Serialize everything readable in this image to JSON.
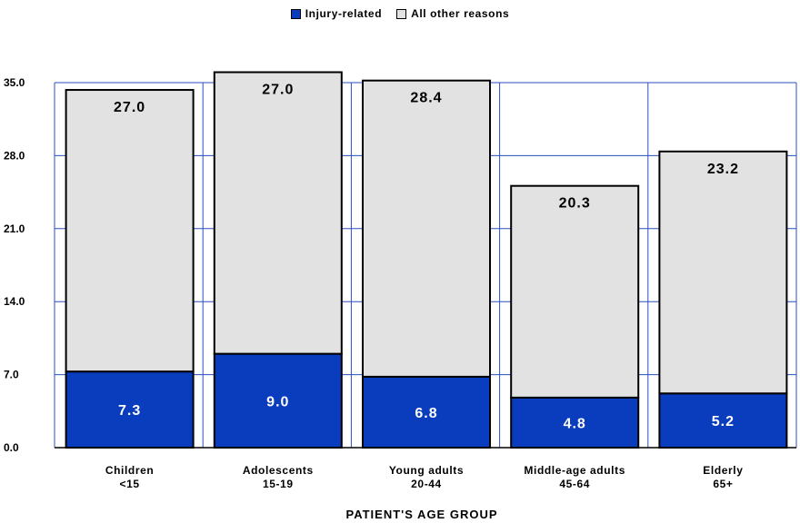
{
  "chart_data": {
    "type": "bar",
    "stacked": true,
    "categories": [
      {
        "line1": "Children",
        "line2": "<15"
      },
      {
        "line1": "Adolescents",
        "line2": "15-19"
      },
      {
        "line1": "Young adults",
        "line2": "20-44"
      },
      {
        "line1": "Middle-age adults",
        "line2": "45-64"
      },
      {
        "line1": "Elderly",
        "line2": "65+"
      }
    ],
    "series": [
      {
        "name": "Injury-related",
        "color": "#0a3cbe",
        "label_color": "#ffffff",
        "values": [
          7.3,
          9.0,
          6.8,
          4.8,
          5.2
        ],
        "labels": [
          "7.3",
          "9.0",
          "6.8",
          "4.8",
          "5.2"
        ]
      },
      {
        "name": "All other reasons",
        "color": "#e2e2e2",
        "label_color": "#000000",
        "values": [
          27.0,
          27.0,
          28.4,
          20.3,
          23.2
        ],
        "labels": [
          "27.0",
          "27.0",
          "28.4",
          "20.3",
          "23.2"
        ]
      }
    ],
    "xlabel": "PATIENT'S AGE GROUP",
    "ylabel": "",
    "ylim": [
      0,
      35
    ],
    "yticks": [
      "0.0",
      "7.0",
      "14.0",
      "21.0",
      "28.0",
      "35.0"
    ],
    "grid": true,
    "legend_position": "top-center"
  }
}
